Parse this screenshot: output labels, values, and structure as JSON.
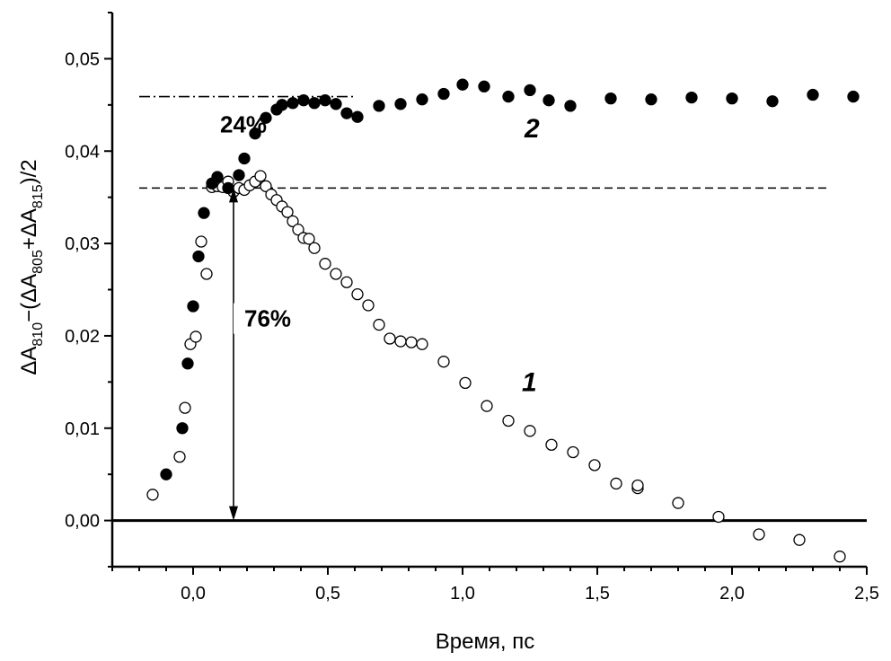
{
  "chart_data": {
    "type": "scatter",
    "title": "",
    "xlabel": "Время, пс",
    "ylabel": {
      "parts": [
        {
          "text": "ΔA",
          "sub": false
        },
        {
          "text": "810",
          "sub": true
        },
        {
          "text": "−(ΔA",
          "sub": false
        },
        {
          "text": "805",
          "sub": true
        },
        {
          "text": "+ΔA",
          "sub": false
        },
        {
          "text": "815",
          "sub": true
        },
        {
          "text": ")/2",
          "sub": false
        }
      ]
    },
    "xlim": [
      -0.3,
      2.5
    ],
    "ylim": [
      -0.005,
      0.055
    ],
    "xticks": [
      {
        "value": 0.0,
        "label": "0,0"
      },
      {
        "value": 0.5,
        "label": "0,5"
      },
      {
        "value": 1.0,
        "label": "1,0"
      },
      {
        "value": 1.5,
        "label": "1,5"
      },
      {
        "value": 2.0,
        "label": "2,0"
      },
      {
        "value": 2.5,
        "label": "2,5"
      }
    ],
    "yticks": [
      {
        "value": 0.0,
        "label": "0,00"
      },
      {
        "value": 0.01,
        "label": "0,01"
      },
      {
        "value": 0.02,
        "label": "0,02"
      },
      {
        "value": 0.03,
        "label": "0,03"
      },
      {
        "value": 0.04,
        "label": "0,04"
      },
      {
        "value": 0.05,
        "label": "0,05"
      }
    ],
    "series": [
      {
        "name": "1",
        "marker": "open-circle",
        "points": [
          [
            -0.15,
            0.0028
          ],
          [
            -0.05,
            0.0069
          ],
          [
            -0.03,
            0.0122
          ],
          [
            -0.01,
            0.0191
          ],
          [
            0.01,
            0.0199
          ],
          [
            0.03,
            0.0302
          ],
          [
            0.05,
            0.0267
          ],
          [
            0.07,
            0.0361
          ],
          [
            0.09,
            0.0362
          ],
          [
            0.11,
            0.0361
          ],
          [
            0.13,
            0.0367
          ],
          [
            0.15,
            0.0356
          ],
          [
            0.17,
            0.036
          ],
          [
            0.19,
            0.0358
          ],
          [
            0.21,
            0.0363
          ],
          [
            0.23,
            0.0367
          ],
          [
            0.25,
            0.0373
          ],
          [
            0.27,
            0.0362
          ],
          [
            0.29,
            0.0353
          ],
          [
            0.31,
            0.0347
          ],
          [
            0.33,
            0.034
          ],
          [
            0.35,
            0.0334
          ],
          [
            0.37,
            0.0324
          ],
          [
            0.39,
            0.0315
          ],
          [
            0.41,
            0.0306
          ],
          [
            0.43,
            0.0305
          ],
          [
            0.45,
            0.0295
          ],
          [
            0.49,
            0.0278
          ],
          [
            0.53,
            0.0267
          ],
          [
            0.57,
            0.0258
          ],
          [
            0.61,
            0.0245
          ],
          [
            0.65,
            0.0233
          ],
          [
            0.69,
            0.0212
          ],
          [
            0.73,
            0.0197
          ],
          [
            0.77,
            0.0194
          ],
          [
            0.81,
            0.0193
          ],
          [
            0.85,
            0.0191
          ],
          [
            0.93,
            0.0172
          ],
          [
            1.01,
            0.0149
          ],
          [
            1.09,
            0.0124
          ],
          [
            1.17,
            0.0108
          ],
          [
            1.25,
            0.0097
          ],
          [
            1.33,
            0.0082
          ],
          [
            1.41,
            0.0074
          ],
          [
            1.49,
            0.006
          ],
          [
            1.57,
            0.004
          ],
          [
            1.65,
            0.0035
          ],
          [
            1.65,
            0.0038
          ],
          [
            1.8,
            0.0019
          ],
          [
            1.95,
            0.0004
          ],
          [
            2.1,
            -0.0015
          ],
          [
            2.25,
            -0.0021
          ],
          [
            2.4,
            -0.0039
          ]
        ]
      },
      {
        "name": "2",
        "marker": "filled-circle",
        "points": [
          [
            -0.1,
            0.005
          ],
          [
            -0.04,
            0.01
          ],
          [
            -0.02,
            0.017
          ],
          [
            0.0,
            0.0232
          ],
          [
            0.02,
            0.0286
          ],
          [
            0.04,
            0.0333
          ],
          [
            0.07,
            0.0365
          ],
          [
            0.09,
            0.0372
          ],
          [
            0.13,
            0.036
          ],
          [
            0.17,
            0.0374
          ],
          [
            0.19,
            0.0392
          ],
          [
            0.23,
            0.0419
          ],
          [
            0.27,
            0.0436
          ],
          [
            0.31,
            0.0445
          ],
          [
            0.33,
            0.045
          ],
          [
            0.37,
            0.0452
          ],
          [
            0.41,
            0.0455
          ],
          [
            0.45,
            0.0452
          ],
          [
            0.49,
            0.0455
          ],
          [
            0.53,
            0.0451
          ],
          [
            0.57,
            0.0441
          ],
          [
            0.61,
            0.0437
          ],
          [
            0.69,
            0.0449
          ],
          [
            0.77,
            0.0451
          ],
          [
            0.85,
            0.0456
          ],
          [
            0.93,
            0.0462
          ],
          [
            1.0,
            0.0472
          ],
          [
            1.08,
            0.047
          ],
          [
            1.17,
            0.0459
          ],
          [
            1.25,
            0.0466
          ],
          [
            1.32,
            0.0455
          ],
          [
            1.4,
            0.0449
          ],
          [
            1.55,
            0.0457
          ],
          [
            1.7,
            0.0456
          ],
          [
            1.85,
            0.0458
          ],
          [
            2.0,
            0.0457
          ],
          [
            2.15,
            0.0454
          ],
          [
            2.3,
            0.0461
          ],
          [
            2.45,
            0.0459
          ]
        ]
      }
    ],
    "reference_lines": [
      {
        "name": "plateau-2-dashdot",
        "style": "dash-dot",
        "y": 0.0459,
        "x_range": [
          -0.2,
          0.6
        ]
      },
      {
        "name": "plateau-1-dashed",
        "style": "dashed",
        "y": 0.036,
        "x_range": [
          -0.2,
          2.35
        ]
      },
      {
        "name": "zero-line",
        "style": "solid",
        "y": 0.0,
        "x_range": [
          -0.3,
          2.5
        ]
      }
    ],
    "annotations": [
      {
        "text": "24%",
        "x": 0.1,
        "y": 0.042
      },
      {
        "text": "76%",
        "x": 0.19,
        "y": 0.021
      },
      {
        "text": "2",
        "x": 1.23,
        "y": 0.0415,
        "italic": true
      },
      {
        "text": "1",
        "x": 1.22,
        "y": 0.014,
        "italic": true
      }
    ],
    "arrow": {
      "x": 0.15,
      "y_from": 0.0,
      "y_to": 0.036
    }
  }
}
